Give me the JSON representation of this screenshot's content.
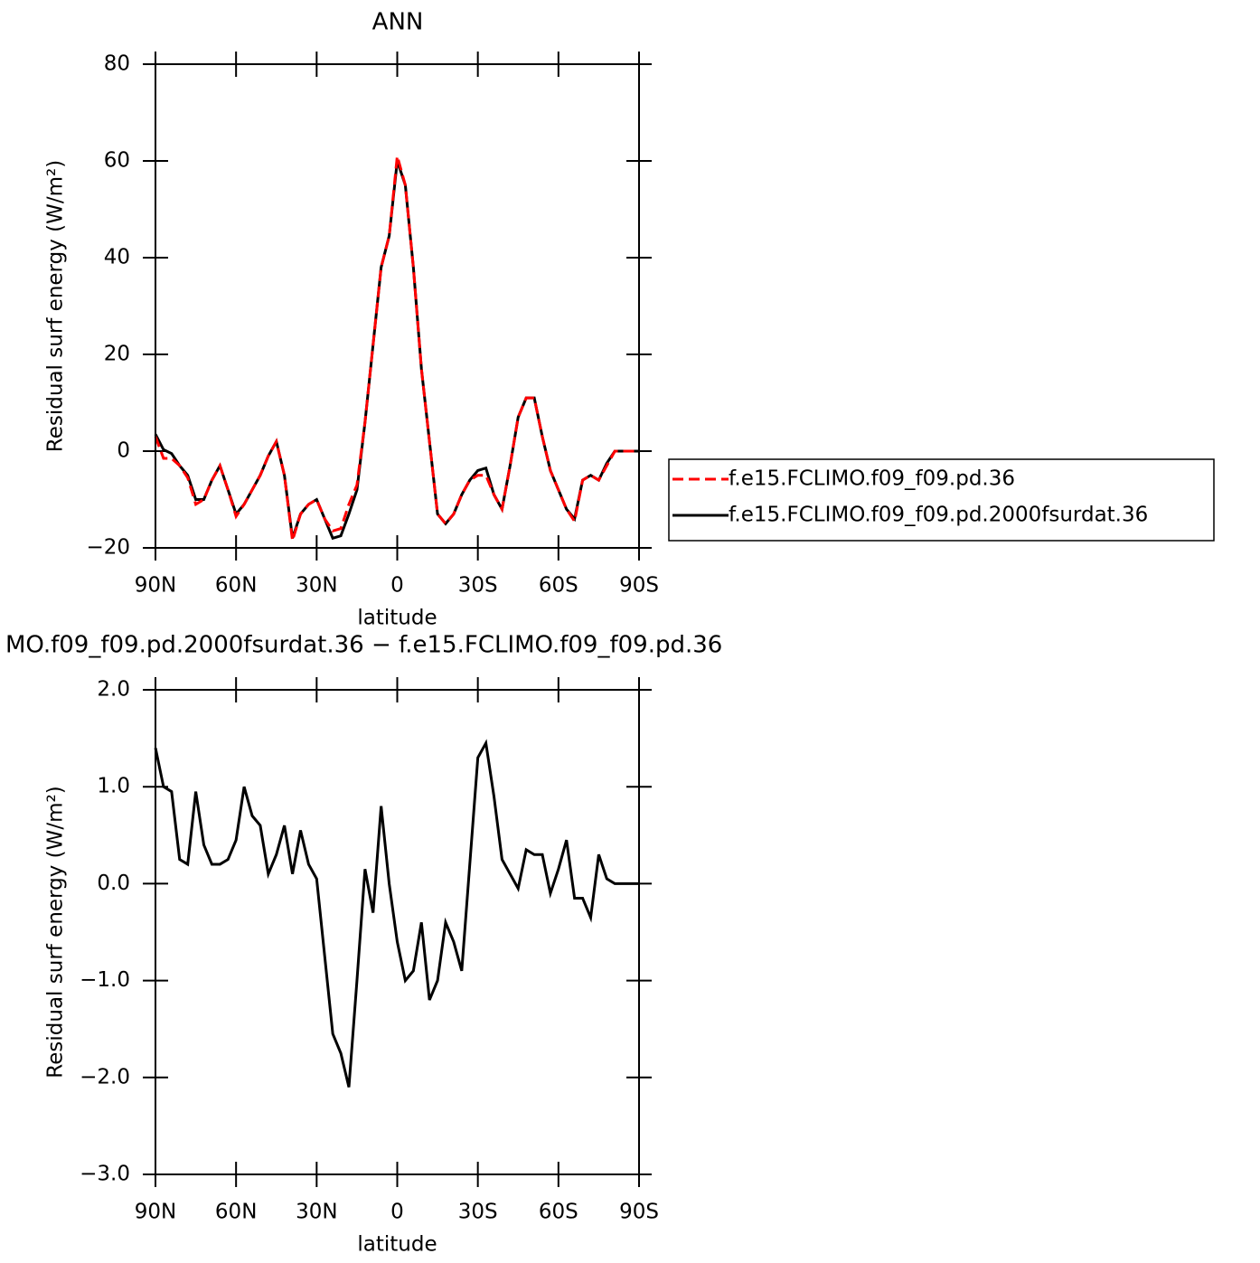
{
  "chart_data": [
    {
      "type": "line",
      "title": "ANN",
      "xlabel": "latitude",
      "ylabel": "Residual surf energy (W/m²)",
      "x": [
        90,
        87,
        84,
        81,
        78,
        75,
        72,
        69,
        66,
        63,
        60,
        57,
        54,
        51,
        48,
        45,
        42,
        39,
        36,
        33,
        30,
        27,
        24,
        21,
        18,
        15,
        12,
        9,
        6,
        3,
        0,
        -3,
        -6,
        -9,
        -12,
        -15,
        -18,
        -21,
        -24,
        -27,
        -30,
        -33,
        -36,
        -39,
        -42,
        -45,
        -48,
        -51,
        -54,
        -57,
        -60,
        -63,
        -66,
        -69,
        -72,
        -75,
        -78,
        -81,
        -84,
        -87,
        -90
      ],
      "series": [
        {
          "name": "f.e15.FCLIMO.f09_f09.pd.36",
          "color": "#ff0000",
          "dash": true,
          "values": [
            3,
            -1.5,
            -1.5,
            -3,
            -5.5,
            -11,
            -10,
            -6,
            -3,
            -8,
            -13.5,
            -11,
            -8,
            -5,
            -1,
            2,
            -5,
            -18.5,
            -13,
            -11,
            -10,
            -14,
            -16.5,
            -16,
            -11,
            -7,
            6,
            22,
            38,
            44.5,
            61,
            55,
            38,
            17,
            2,
            -13,
            -15,
            -13,
            -9,
            -6,
            -5,
            -5,
            -9,
            -12,
            -3,
            7,
            11,
            11,
            3,
            -4,
            -8,
            -12,
            -14.5,
            -6,
            -5,
            -6,
            -3,
            0,
            0,
            0,
            0
          ]
        },
        {
          "name": "f.e15.FCLIMO.f09_f09.pd.2000fsurdat.36",
          "color": "#000000",
          "dash": false,
          "values": [
            3.5,
            0.3,
            -0.5,
            -3,
            -5,
            -10,
            -10,
            -6,
            -3,
            -8,
            -13,
            -11,
            -8,
            -5,
            -1,
            2,
            -5,
            -18,
            -13,
            -11,
            -10,
            -14,
            -18,
            -17.5,
            -13,
            -8,
            6,
            22,
            38,
            44.5,
            60,
            55,
            38,
            17,
            2,
            -13,
            -15,
            -13,
            -9,
            -6,
            -4,
            -3.5,
            -9,
            -12,
            -3,
            7,
            11,
            11,
            3,
            -4,
            -8,
            -12,
            -14,
            -6,
            -5,
            -6,
            -2.5,
            0,
            0,
            0,
            0
          ]
        }
      ],
      "xlim": [
        90,
        -90
      ],
      "xticks": [
        {
          "value": 90,
          "label": "90N"
        },
        {
          "value": 60,
          "label": "60N"
        },
        {
          "value": 30,
          "label": "30N"
        },
        0,
        {
          "value": -30,
          "label": "30S"
        },
        {
          "value": -60,
          "label": "60S"
        },
        {
          "value": -90,
          "label": "90S"
        }
      ],
      "ylim": [
        -20,
        80
      ],
      "yticks": [
        {
          "value": -20,
          "label": "−20"
        },
        0,
        20,
        40,
        60,
        80
      ],
      "legend": "right"
    },
    {
      "type": "line",
      "title": "MO.f09_f09.pd.2000fsurdat.36 − f.e15.FCLIMO.f09_f09.pd.36",
      "xlabel": "latitude",
      "ylabel": "Residual surf energy (W/m²)",
      "x": [
        90,
        87,
        84,
        81,
        78,
        75,
        72,
        69,
        66,
        63,
        60,
        57,
        54,
        51,
        48,
        45,
        42,
        39,
        36,
        33,
        30,
        27,
        24,
        21,
        18,
        15,
        12,
        9,
        6,
        3,
        0,
        -3,
        -6,
        -9,
        -12,
        -15,
        -18,
        -21,
        -24,
        -27,
        -30,
        -33,
        -36,
        -39,
        -42,
        -45,
        -48,
        -51,
        -54,
        -57,
        -60,
        -63,
        -66,
        -69,
        -72,
        -75,
        -78,
        -81,
        -84,
        -87,
        -90
      ],
      "color": "#000000",
      "values": [
        1.4,
        1.0,
        0.95,
        0.25,
        0.2,
        0.95,
        0.4,
        0.2,
        0.2,
        0.25,
        0.45,
        1.0,
        0.7,
        0.6,
        0.1,
        0.3,
        0.6,
        0.1,
        0.55,
        0.2,
        0.05,
        -0.75,
        -1.55,
        -1.75,
        -2.1,
        -1.0,
        0.15,
        -0.3,
        0.8,
        0.0,
        -0.6,
        -1.0,
        -0.9,
        -0.4,
        -1.2,
        -1.0,
        -0.4,
        -0.6,
        -0.9,
        0.2,
        1.3,
        1.45,
        0.9,
        0.25,
        0.1,
        -0.05,
        0.35,
        0.3,
        0.3,
        -0.1,
        0.15,
        0.45,
        -0.15,
        -0.15,
        -0.35,
        0.3,
        0.05,
        0,
        0,
        0,
        0
      ],
      "xlim": [
        90,
        -90
      ],
      "xticks": [
        {
          "value": 90,
          "label": "90N"
        },
        {
          "value": 60,
          "label": "60N"
        },
        {
          "value": 30,
          "label": "30N"
        },
        0,
        {
          "value": -30,
          "label": "30S"
        },
        {
          "value": -60,
          "label": "60S"
        },
        {
          "value": -90,
          "label": "90S"
        }
      ],
      "ylim": [
        -3,
        2
      ],
      "yticks": [
        {
          "value": -3,
          "label": "−3.0"
        },
        {
          "value": -2,
          "label": "−2.0"
        },
        {
          "value": -1,
          "label": "−1.0"
        },
        {
          "value": 0,
          "label": "0.0"
        },
        {
          "value": 1,
          "label": "1.0"
        },
        {
          "value": 2,
          "label": "2.0"
        }
      ]
    }
  ]
}
